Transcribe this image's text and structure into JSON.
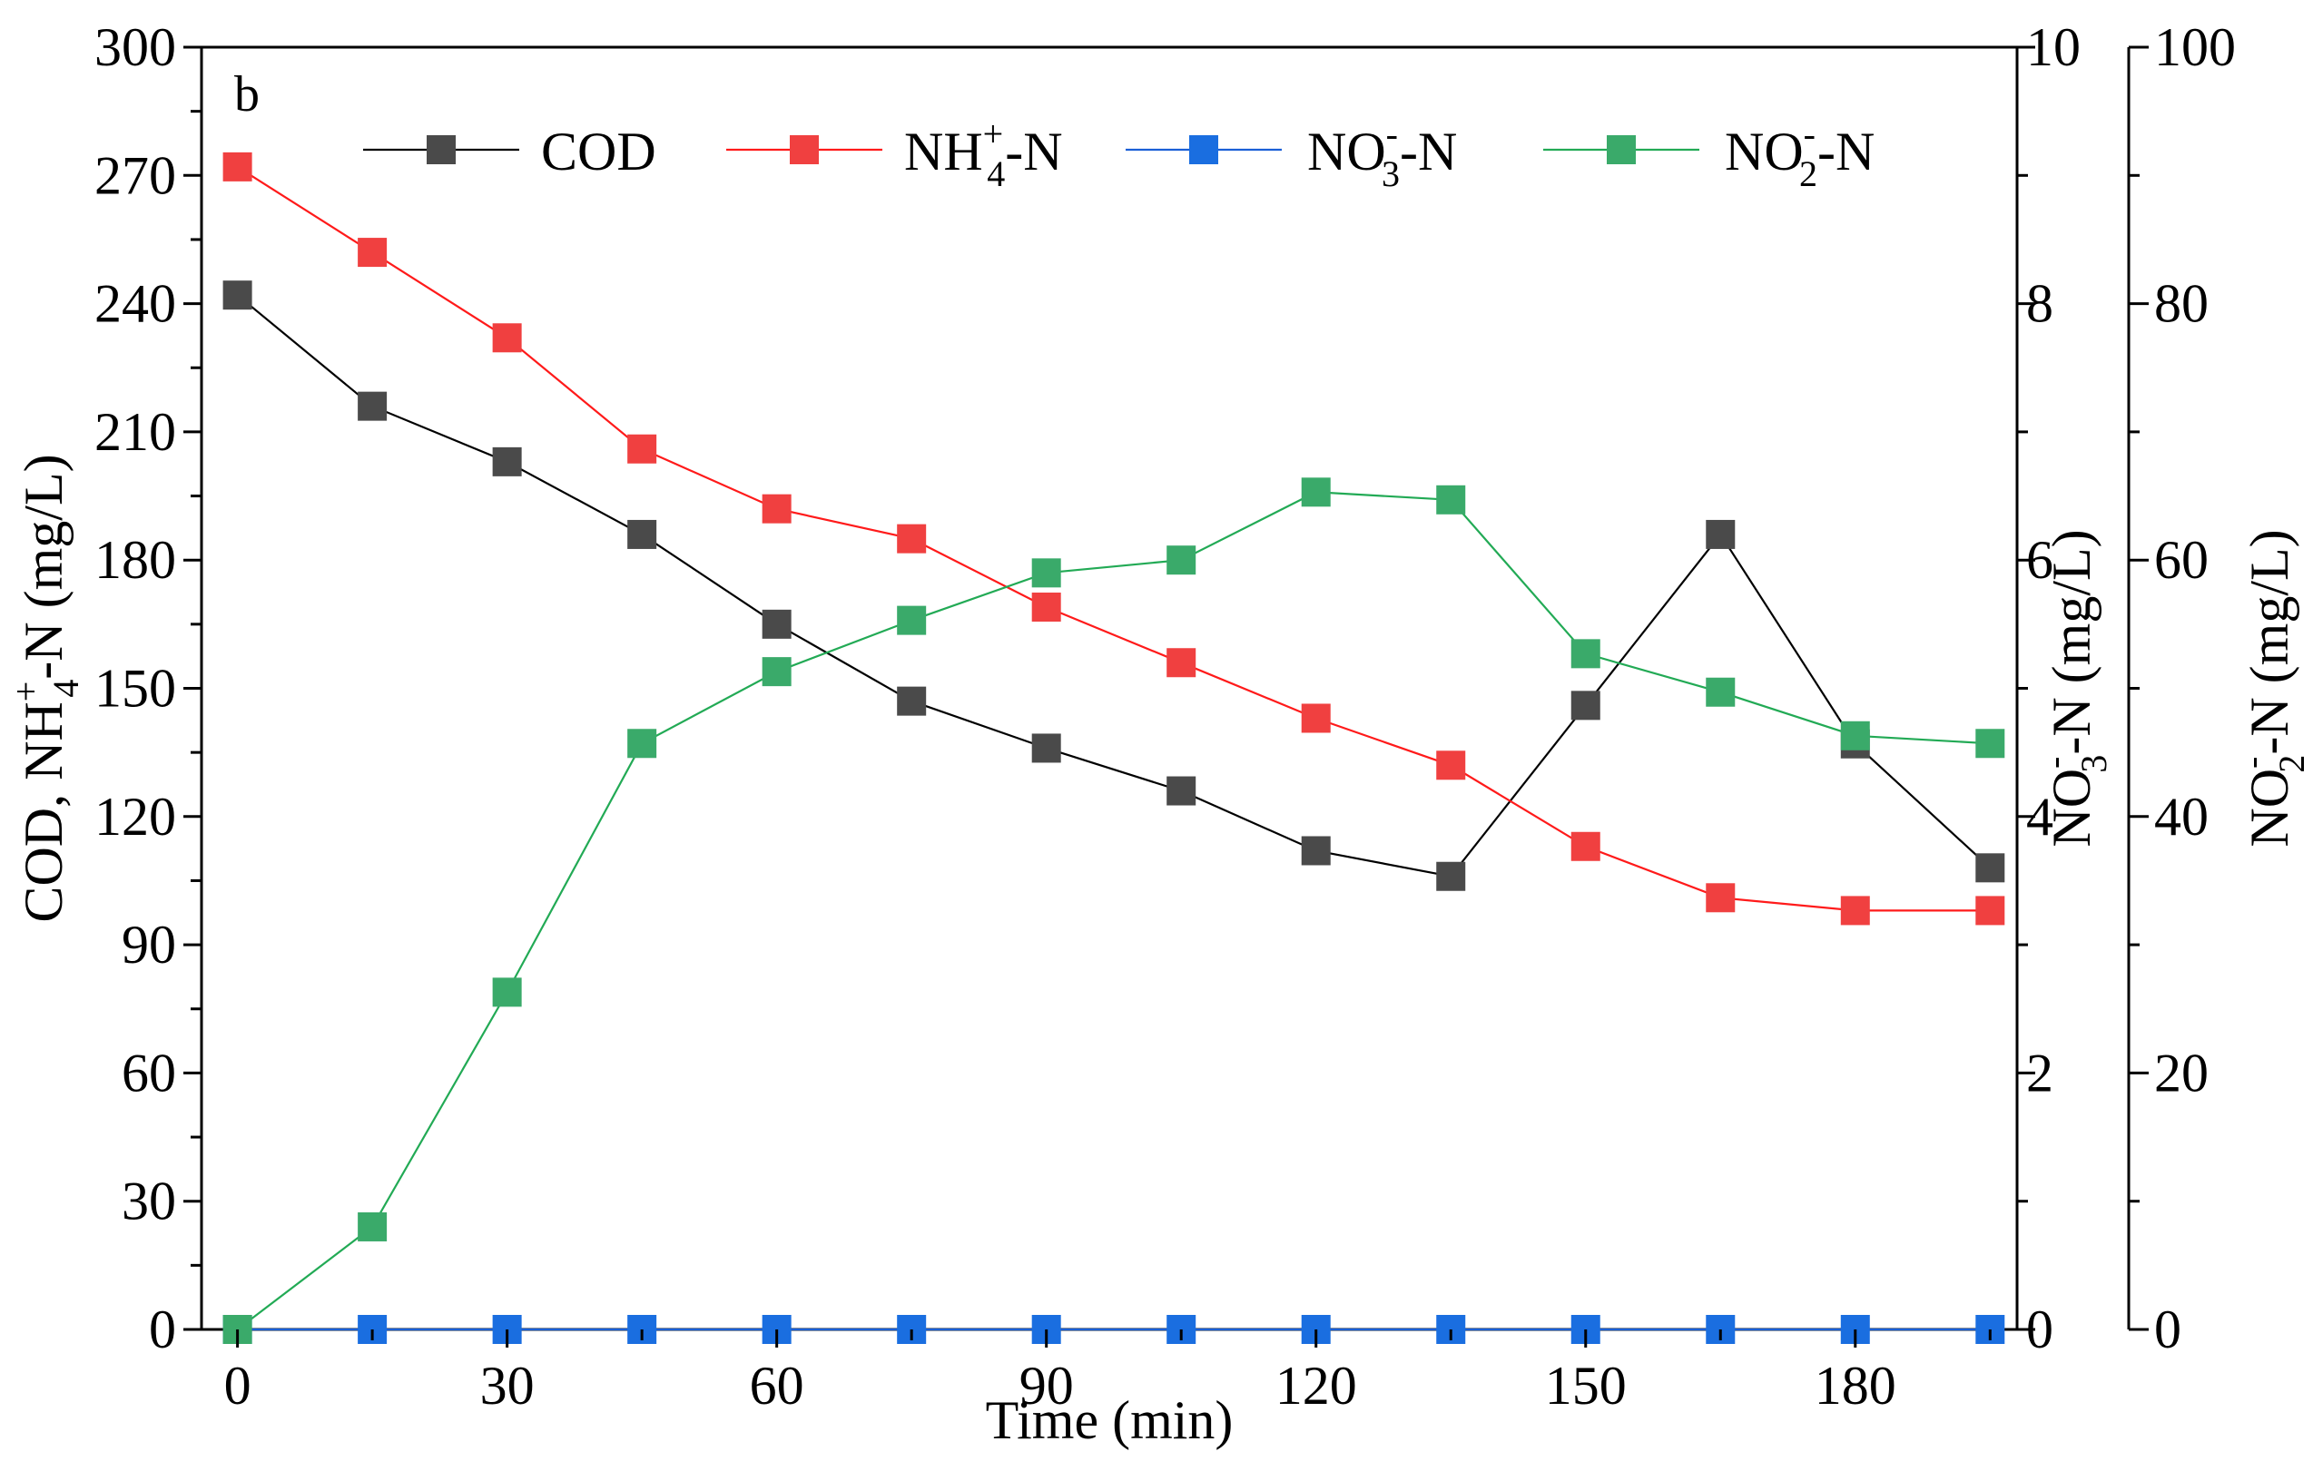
{
  "chart_data": {
    "type": "line",
    "panel_label": "b",
    "x": [
      0,
      15,
      30,
      45,
      60,
      75,
      90,
      105,
      120,
      135,
      150,
      165,
      180,
      195
    ],
    "x_ticks": [
      0,
      30,
      60,
      90,
      120,
      150,
      180
    ],
    "xlabel": "Time (min)",
    "xlim": [
      -4,
      198
    ],
    "axes": {
      "left": {
        "ylim": [
          0,
          300
        ],
        "ticks": [
          0,
          30,
          60,
          90,
          120,
          150,
          180,
          210,
          240,
          270,
          300
        ],
        "label_parts": [
          "COD, NH",
          "+",
          "4",
          "-N (mg/L)"
        ]
      },
      "right1": {
        "ylim": [
          0,
          10
        ],
        "ticks": [
          0,
          2,
          4,
          6,
          8,
          10
        ],
        "label_parts": [
          "NO",
          "-",
          "3",
          "-N (mg/L)"
        ]
      },
      "right2": {
        "ylim": [
          0,
          100
        ],
        "ticks": [
          0,
          20,
          40,
          60,
          80,
          100
        ],
        "label_parts": [
          "NO",
          "-",
          "2",
          "-N (mg/L)"
        ]
      }
    },
    "series": [
      {
        "name": "COD",
        "legend_parts": [
          "COD",
          "",
          ""
        ],
        "axis": "left",
        "color": "#000000",
        "marker_color": "#4a4a4a",
        "values": [
          242,
          216,
          203,
          186,
          165,
          147,
          136,
          126,
          112,
          106,
          146,
          186,
          137,
          108
        ]
      },
      {
        "name": "NH4+-N",
        "legend_parts": [
          "NH",
          "+",
          "4",
          "-N"
        ],
        "axis": "left",
        "color": "#ff1a1a",
        "marker_color": "#f04040",
        "values": [
          272,
          252,
          232,
          206,
          192,
          185,
          169,
          156,
          143,
          132,
          113,
          101,
          98,
          98
        ]
      },
      {
        "name": "NO3--N",
        "legend_parts": [
          "NO",
          "-",
          "3",
          "-N"
        ],
        "axis": "right1",
        "color": "#1a5fd6",
        "marker_color": "#1a6ee0",
        "values": [
          0,
          0,
          0,
          0,
          0,
          0,
          0,
          0,
          0,
          0,
          0,
          0,
          0,
          0
        ]
      },
      {
        "name": "NO2--N",
        "legend_parts": [
          "NO",
          "-",
          "2",
          "-N"
        ],
        "axis": "right2",
        "color": "#22aa55",
        "marker_color": "#3aaa6a",
        "values": [
          0,
          8,
          26.3,
          45.7,
          51.3,
          55.3,
          59,
          60,
          65.3,
          64.7,
          52.7,
          49.7,
          46.3,
          45.7
        ]
      }
    ]
  }
}
